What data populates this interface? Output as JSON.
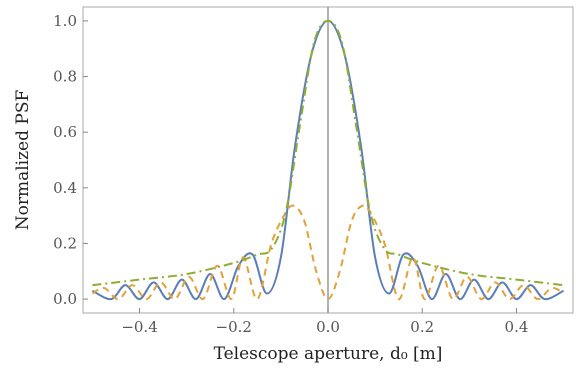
{
  "chart_data": {
    "type": "line",
    "xlabel": "Telescope aperture,  d₀ [m]",
    "ylabel": "Normalized PSF",
    "xlim": [
      -0.52,
      0.52
    ],
    "ylim": [
      -0.05,
      1.05
    ],
    "x_ticks": [
      -0.4,
      -0.2,
      0.0,
      0.2,
      0.4
    ],
    "x_tick_labels": [
      "−0.4",
      "−0.2",
      "0.0",
      "0.2",
      "0.4"
    ],
    "y_ticks": [
      0.0,
      0.2,
      0.4,
      0.6,
      0.8,
      1.0
    ],
    "y_tick_labels": [
      "0.0",
      "0.2",
      "0.4",
      "0.6",
      "0.8",
      "1.0"
    ],
    "grid": false,
    "legend": "none",
    "vertical_reference_line": {
      "x": 0.0,
      "color": "#999999"
    },
    "series": [
      {
        "style": "solid",
        "color": "#5b7db8",
        "x": [
          -0.5,
          -0.46,
          -0.43,
          -0.4,
          -0.37,
          -0.34,
          -0.31,
          -0.28,
          -0.25,
          -0.22,
          -0.19,
          -0.16,
          -0.13,
          -0.1,
          -0.07,
          -0.035,
          0.0,
          0.035,
          0.07,
          0.1,
          0.13,
          0.16,
          0.19,
          0.22,
          0.25,
          0.28,
          0.31,
          0.34,
          0.37,
          0.4,
          0.43,
          0.46,
          0.5
        ],
        "y": [
          0.03,
          0.0,
          0.05,
          0.0,
          0.06,
          0.0,
          0.07,
          0.0,
          0.09,
          0.0,
          0.12,
          0.16,
          0.02,
          0.15,
          0.55,
          0.88,
          1.0,
          0.88,
          0.55,
          0.15,
          0.02,
          0.16,
          0.12,
          0.0,
          0.09,
          0.0,
          0.07,
          0.0,
          0.06,
          0.0,
          0.05,
          0.0,
          0.03
        ]
      },
      {
        "style": "dashed",
        "color": "#e3a13a",
        "x": [
          -0.5,
          -0.475,
          -0.445,
          -0.415,
          -0.385,
          -0.355,
          -0.325,
          -0.295,
          -0.265,
          -0.235,
          -0.205,
          -0.18,
          -0.15,
          -0.12,
          -0.09,
          -0.072,
          -0.05,
          -0.025,
          0.0,
          0.025,
          0.05,
          0.072,
          0.09,
          0.12,
          0.15,
          0.18,
          0.205,
          0.235,
          0.265,
          0.295,
          0.325,
          0.355,
          0.385,
          0.415,
          0.445,
          0.475,
          0.5
        ],
        "y": [
          0.02,
          0.04,
          0.0,
          0.05,
          0.0,
          0.06,
          0.0,
          0.08,
          0.0,
          0.12,
          0.0,
          0.15,
          0.0,
          0.2,
          0.31,
          0.335,
          0.28,
          0.1,
          0.0,
          0.1,
          0.28,
          0.335,
          0.31,
          0.2,
          0.0,
          0.15,
          0.0,
          0.12,
          0.0,
          0.08,
          0.0,
          0.06,
          0.0,
          0.05,
          0.0,
          0.04,
          0.02
        ]
      },
      {
        "style": "dash-dot",
        "color": "#8fad33",
        "x": [
          -0.5,
          -0.4,
          -0.3,
          -0.2,
          -0.15,
          -0.12,
          -0.09,
          -0.06,
          -0.03,
          0.0,
          0.03,
          0.06,
          0.09,
          0.12,
          0.15,
          0.2,
          0.3,
          0.4,
          0.5
        ],
        "y": [
          0.05,
          0.07,
          0.09,
          0.13,
          0.16,
          0.18,
          0.31,
          0.62,
          0.92,
          1.0,
          0.92,
          0.62,
          0.31,
          0.18,
          0.16,
          0.13,
          0.09,
          0.07,
          0.05
        ]
      }
    ]
  }
}
